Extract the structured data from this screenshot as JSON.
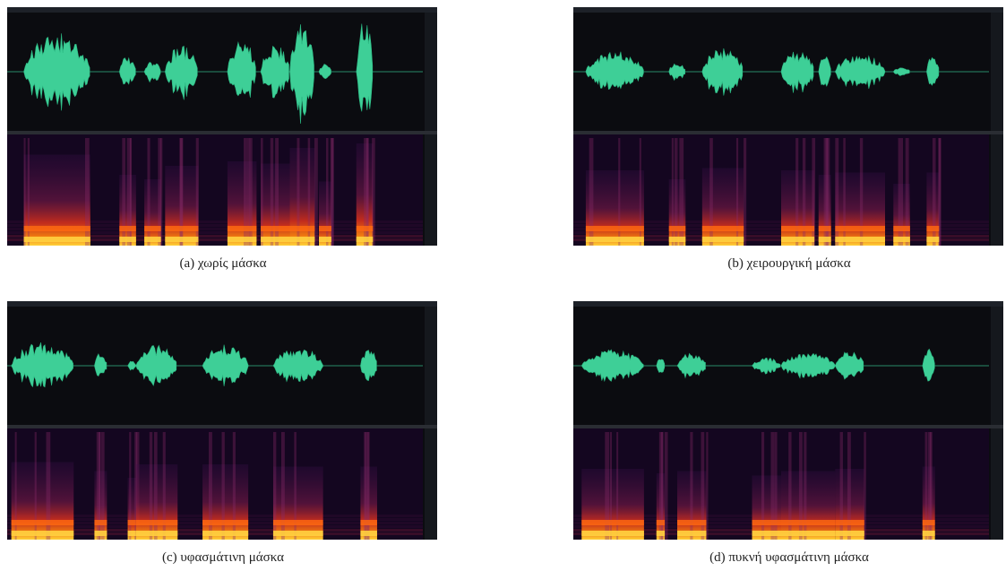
{
  "panels": [
    {
      "caption": "(a) χωρίς μάσκα"
    },
    {
      "caption": "(b) χειρουργική μάσκα"
    },
    {
      "caption": "(c) υφασμάτινη μάσκα"
    },
    {
      "caption": "(d) πυκνή υφασμάτινη μάσκα"
    }
  ]
}
